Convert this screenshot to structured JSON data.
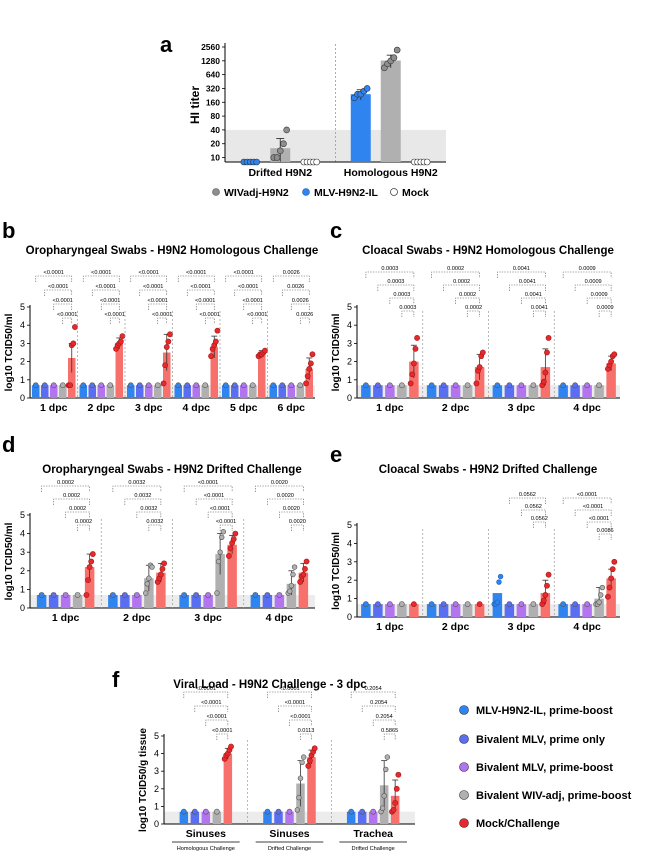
{
  "panel_a": {
    "letter": "a",
    "ylabel": "HI titer",
    "groups": [
      "Drifted H9N2",
      "Homologous H9N2"
    ],
    "legend": [
      "WIVadj-H9N2",
      "MLV-H9N2-IL",
      "Mock"
    ]
  },
  "panel_b": {
    "letter": "b",
    "title": "Oropharyngeal Swabs - H9N2 Homologous Challenge",
    "ylabel": "log10 TCID50/ml"
  },
  "panel_c": {
    "letter": "c",
    "title": "Cloacal Swabs - H9N2 Homologous Challenge",
    "ylabel": "log10 TCID50/ml"
  },
  "panel_d": {
    "letter": "d",
    "title": "Oropharyngeal Swabs - H9N2 Drifted Challenge",
    "ylabel": "log10 TCID50/ml"
  },
  "panel_e": {
    "letter": "e",
    "title": "Cloacal Swabs - H9N2 Drifted Challenge",
    "ylabel": "log10 TCID50/ml"
  },
  "panel_f": {
    "letter": "f",
    "title": "Viral Load - H9N2 Challenge - 3 dpc",
    "ylabel": "log10 TCID50/g tissue",
    "sublabels": [
      "Homologous Challenge",
      "Drifted Challenge",
      "Drifted Challenge"
    ],
    "legend": [
      "MLV-H9N2-IL, prime-boost",
      "Bivalent MLV, prime only",
      "Bivalent MLV, prime-boost",
      "Bivalent WIV-adj, prime-boost",
      "Mock/Challenge"
    ]
  },
  "chart_data": [
    {
      "id": "a",
      "type": "bar",
      "yscale": "log2",
      "yticks": [
        "10",
        "20",
        "40",
        "80",
        "160",
        "320",
        "640",
        "1280",
        "2560"
      ],
      "ylim": [
        8,
        2560
      ],
      "categories": [
        "Drifted H9N2",
        "Homologous H9N2"
      ],
      "series": [
        {
          "name": "MLV-H9N2-IL",
          "color": "#2f84f0",
          "values": [
            8,
            240
          ],
          "err": [
            0,
            60
          ],
          "points": [
            [
              8,
              8,
              8,
              8,
              8
            ],
            [
              200,
              240,
              240,
              280,
              320
            ]
          ]
        },
        {
          "name": "WIVadj-H9N2",
          "color": "#b0b0b0",
          "values": [
            16,
            1300
          ],
          "err": [
            10,
            400
          ],
          "points": [
            [
              10,
              10,
              14,
              20,
              40
            ],
            [
              900,
              1100,
              1280,
              1500,
              2200
            ]
          ]
        },
        {
          "name": "Mock",
          "color": "#ffffff",
          "values": [
            8,
            8
          ],
          "err": [
            0,
            0
          ],
          "points": [
            [
              8,
              8,
              8,
              8,
              8
            ],
            [
              8,
              8,
              8,
              8,
              8
            ]
          ]
        }
      ]
    },
    {
      "id": "b",
      "type": "bar",
      "title": "Oropharyngeal Swabs - H9N2 Homologous Challenge",
      "ylabel": "log10 TCID50/ml",
      "yticks": [
        "0",
        "1",
        "2",
        "3",
        "4",
        "5"
      ],
      "ylim": [
        0,
        5
      ],
      "lod": 0.7,
      "categories": [
        "1 dpc",
        "2 dpc",
        "3 dpc",
        "4 dpc",
        "5 dpc",
        "6 dpc"
      ],
      "series_colors": [
        "#2f84f0",
        "#5a6ef2",
        "#b374f0",
        "#b0b0b0",
        "#f7706b"
      ],
      "mock_values": [
        2.2,
        3.0,
        2.5,
        2.8,
        2.4,
        1.6
      ],
      "mock_err": [
        0.8,
        0.3,
        1.0,
        0.6,
        0.2,
        0.6
      ],
      "mock_points": [
        [
          0.7,
          0.7,
          2.9,
          3.0,
          3.9
        ],
        [
          2.7,
          2.9,
          3.0,
          3.1,
          3.4
        ],
        [
          0.8,
          1.8,
          2.8,
          3.1,
          3.5
        ],
        [
          2.3,
          2.7,
          2.9,
          3.1,
          3.7
        ],
        [
          2.3,
          2.4,
          2.4,
          2.5,
          2.6
        ],
        [
          0.8,
          1.2,
          1.6,
          1.9,
          2.4
        ]
      ],
      "wiv_values": [
        0.7,
        0.7,
        0.7,
        0.7,
        0.7,
        0.7
      ],
      "wiv_err": [
        0,
        0,
        0,
        0,
        0,
        0
      ],
      "wiv_points": [
        [],
        [],
        [],
        [],
        [],
        []
      ],
      "pvalues": [
        [
          "<0.0001",
          "<0.0001",
          "<0.0001",
          "<0.0001"
        ],
        [
          "<0.0001",
          "<0.0001",
          "<0.0001",
          "<0.0001"
        ],
        [
          "<0.0001",
          "<0.0001",
          "<0.0001",
          "<0.0001"
        ],
        [
          "<0.0001",
          "<0.0001",
          "<0.0001",
          "<0.0001"
        ],
        [
          "<0.0001",
          "<0.0001",
          "<0.0001",
          "<0.0001"
        ],
        [
          "0.0026",
          "0.0026",
          "0.0026",
          "0.0026"
        ]
      ]
    },
    {
      "id": "c",
      "type": "bar",
      "title": "Cloacal Swabs - H9N2 Homologous Challenge",
      "ylabel": "log10 TCID50/ml",
      "yticks": [
        "0",
        "1",
        "2",
        "3",
        "4",
        "5"
      ],
      "ylim": [
        0,
        5
      ],
      "lod": 0.7,
      "categories": [
        "1 dpc",
        "2 dpc",
        "3 dpc",
        "4 dpc"
      ],
      "series_colors": [
        "#2f84f0",
        "#5a6ef2",
        "#b374f0",
        "#b0b0b0",
        "#f7706b"
      ],
      "mock_values": [
        2.0,
        1.7,
        1.7,
        1.9
      ],
      "mock_err": [
        0.9,
        0.7,
        1.0,
        0.4
      ],
      "mock_points": [
        [
          0.8,
          1.3,
          1.9,
          2.7,
          3.3
        ],
        [
          0.8,
          1.5,
          1.7,
          2.3,
          2.5
        ],
        [
          0.7,
          0.9,
          1.4,
          2.5,
          3.3
        ],
        [
          1.6,
          1.8,
          2.0,
          2.3,
          2.4
        ]
      ],
      "wiv_values": [
        0.7,
        0.7,
        0.7,
        0.7
      ],
      "wiv_err": [
        0,
        0,
        0,
        0
      ],
      "wiv_points": [
        [],
        [],
        [],
        []
      ],
      "pvalues": [
        [
          "0.0003",
          "0.0003",
          "0.0003",
          "0.0003"
        ],
        [
          "0.0002",
          "0.0002",
          "0.0002",
          "0.0002"
        ],
        [
          "0.0041",
          "0.0041",
          "0.0041",
          "0.0041"
        ],
        [
          "0.0009",
          "0.0009",
          "0.0009",
          "0.0009"
        ]
      ]
    },
    {
      "id": "d",
      "type": "bar",
      "title": "Oropharyngeal Swabs - H9N2 Drifted Challenge",
      "ylabel": "log10 TCID50/ml",
      "yticks": [
        "0",
        "1",
        "2",
        "3",
        "4",
        "5"
      ],
      "ylim": [
        0,
        5
      ],
      "lod": 0.7,
      "categories": [
        "1 dpc",
        "2 dpc",
        "3 dpc",
        "4 dpc"
      ],
      "series_colors": [
        "#2f84f0",
        "#5a6ef2",
        "#b374f0",
        "#b0b0b0",
        "#f7706b"
      ],
      "mock_values": [
        2.2,
        1.9,
        3.4,
        1.9
      ],
      "mock_err": [
        0.7,
        0.5,
        0.5,
        0.5
      ],
      "mock_points": [
        [
          0.7,
          1.5,
          2.2,
          2.5,
          2.9
        ],
        [
          1.4,
          1.6,
          1.8,
          2.1,
          2.4
        ],
        [
          2.8,
          3.2,
          3.5,
          3.7,
          4.0
        ],
        [
          1.4,
          1.7,
          1.8,
          2.1,
          2.5
        ]
      ],
      "wiv_values": [
        0.7,
        1.6,
        2.9,
        1.3
      ],
      "wiv_err": [
        0,
        0.7,
        1.1,
        0.7
      ],
      "wiv_points": [
        [],
        [
          0.8,
          1.3,
          1.6,
          2.3,
          2.2
        ],
        [
          0.8,
          2.5,
          3.0,
          3.8,
          4.1
        ],
        [
          0.8,
          0.9,
          1.2,
          1.8,
          2.2
        ]
      ],
      "pvalues": [
        [
          "0.0002",
          "0.0002",
          "0.0002",
          "0.0002"
        ],
        [
          "0.0032",
          "0.0032",
          "0.0032",
          "0.0032"
        ],
        [
          "<0.0001",
          "<0.0001",
          "<0.0001",
          "<0.0001"
        ],
        [
          "0.0020",
          "0.0020",
          "0.0020",
          "0.0020"
        ]
      ]
    },
    {
      "id": "e",
      "type": "bar",
      "title": "Cloacal Swabs - H9N2 Drifted Challenge",
      "ylabel": "log10 TCID50/ml",
      "yticks": [
        "0",
        "1",
        "2",
        "3",
        "4",
        "5"
      ],
      "ylim": [
        0,
        5
      ],
      "lod": 0.7,
      "categories": [
        "1 dpc",
        "2 dpc",
        "3 dpc",
        "4 dpc"
      ],
      "series_colors": [
        "#2f84f0",
        "#5a6ef2",
        "#b374f0",
        "#b0b0b0",
        "#f7706b"
      ],
      "blue_values": [
        0.7,
        0.7,
        1.3,
        0.7
      ],
      "blue_points": [
        [],
        [],
        [
          0.7,
          0.7,
          0.8,
          1.9,
          2.2
        ],
        []
      ],
      "mock_values": [
        0.7,
        0.7,
        1.3,
        2.1
      ],
      "mock_err": [
        0,
        0,
        0.7,
        0.5
      ],
      "mock_points": [
        [],
        [],
        [
          0.7,
          0.9,
          1.2,
          1.7,
          2.3
        ],
        [
          1.1,
          1.6,
          2.1,
          2.6,
          3.0
        ]
      ],
      "wiv_values": [
        0.7,
        0.7,
        0.7,
        1.0
      ],
      "wiv_err": [
        0,
        0,
        0,
        0.6
      ],
      "wiv_points": [
        [],
        [],
        [],
        [
          0.7,
          0.7,
          0.8,
          1.2,
          1.6
        ]
      ],
      "pvalues": [
        [],
        [],
        [
          "0.0562",
          "0.0562",
          "0.0562"
        ],
        [
          "<0.0001",
          "<0.0001",
          "<0.0001",
          "0.0086"
        ]
      ]
    },
    {
      "id": "f",
      "type": "bar",
      "title": "Viral Load - H9N2 Challenge - 3 dpc",
      "ylabel": "log10 TCID50/g tissue",
      "yticks": [
        "0",
        "1",
        "2",
        "3",
        "4",
        "5"
      ],
      "ylim": [
        0,
        5
      ],
      "lod": 0.7,
      "categories": [
        "Sinuses",
        "Sinuses",
        "Trachea"
      ],
      "series_colors": [
        "#2f84f0",
        "#5a6ef2",
        "#b374f0",
        "#b0b0b0",
        "#f7706b"
      ],
      "mock_values": [
        4.0,
        3.8,
        1.6
      ],
      "mock_err": [
        0.3,
        0.4,
        0.9
      ],
      "mock_points": [
        [
          3.7,
          3.9,
          4.0,
          4.2,
          4.4
        ],
        [
          3.3,
          3.6,
          3.9,
          4.1,
          4.3
        ],
        [
          0.7,
          0.8,
          1.2,
          2.0,
          2.8
        ]
      ],
      "wiv_values": [
        0.7,
        2.3,
        2.2
      ],
      "wiv_err": [
        0,
        1.3,
        1.4
      ],
      "wiv_points": [
        [],
        [
          0.8,
          1.5,
          2.6,
          3.5,
          3.8
        ],
        [
          0.7,
          0.9,
          1.6,
          3.1,
          3.8
        ]
      ],
      "pvalues": [
        [
          "<0.0001",
          "<0.0001",
          "<0.0001",
          "<0.0001"
        ],
        [
          "<0.0001",
          "<0.0001",
          "<0.0001",
          "0.0113"
        ],
        [
          "0.2054",
          "0.2054",
          "0.2054",
          "0.5865"
        ]
      ]
    }
  ]
}
